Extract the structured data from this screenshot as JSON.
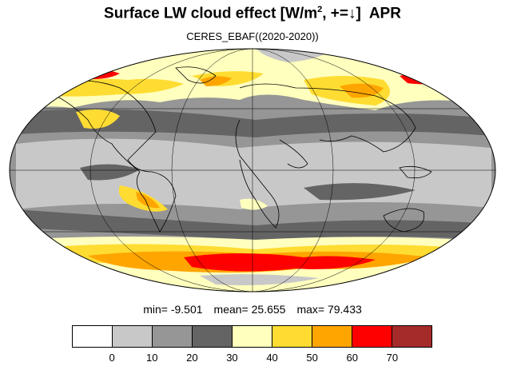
{
  "title": {
    "main": "Surface LW cloud effect [W/m",
    "sup": "2",
    "tail": ", +=↓]",
    "month": "APR"
  },
  "subtitle": "CERES_EBAF((2020-2020))",
  "stats": {
    "min_label": "min=",
    "min": "-9.501",
    "mean_label": "mean=",
    "mean": "25.655",
    "max_label": "max=",
    "max": "79.433"
  },
  "colorbar": {
    "colors": [
      "#ffffff",
      "#c8c8c8",
      "#969696",
      "#646464",
      "#ffffbe",
      "#ffdc32",
      "#ffa500",
      "#ff0000",
      "#a52a2a"
    ],
    "ticks": [
      "0",
      "10",
      "20",
      "30",
      "40",
      "50",
      "60",
      "70"
    ]
  },
  "map": {
    "projection": "Mollweide",
    "field": "Surface LW cloud effect",
    "units": "W/m2",
    "month": "APR",
    "year": "2020"
  }
}
